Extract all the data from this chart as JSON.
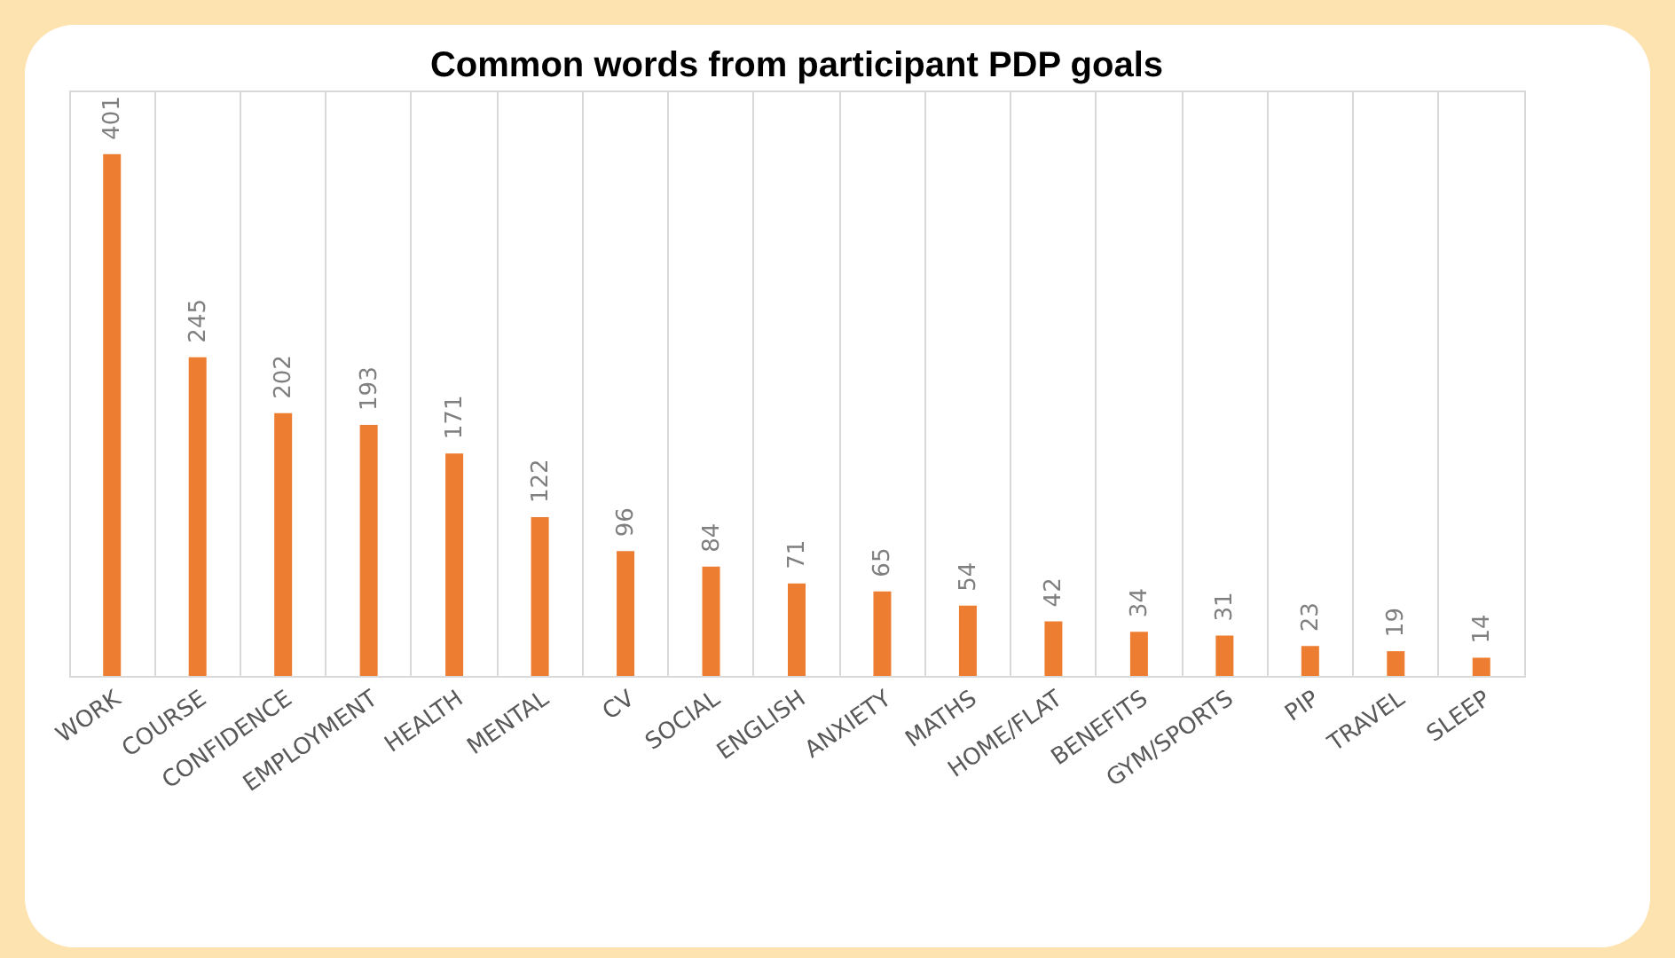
{
  "chart_data": {
    "type": "bar",
    "title": "Common words from participant PDP goals",
    "categories": [
      "WORK",
      "COURSE",
      "CONFIDENCE",
      "EMPLOYMENT",
      "HEALTH",
      "MENTAL",
      "CV",
      "SOCIAL",
      "ENGLISH",
      "ANXIETY",
      "MATHS",
      "HOME/FLAT",
      "BENEFITS",
      "GYM/SPORTS",
      "PIP",
      "TRAVEL",
      "SLEEP"
    ],
    "values": [
      401,
      245,
      202,
      193,
      171,
      122,
      96,
      84,
      71,
      65,
      54,
      42,
      34,
      31,
      23,
      19,
      14
    ],
    "color": "#ed7d31",
    "data_labels": true,
    "grid": "x"
  }
}
